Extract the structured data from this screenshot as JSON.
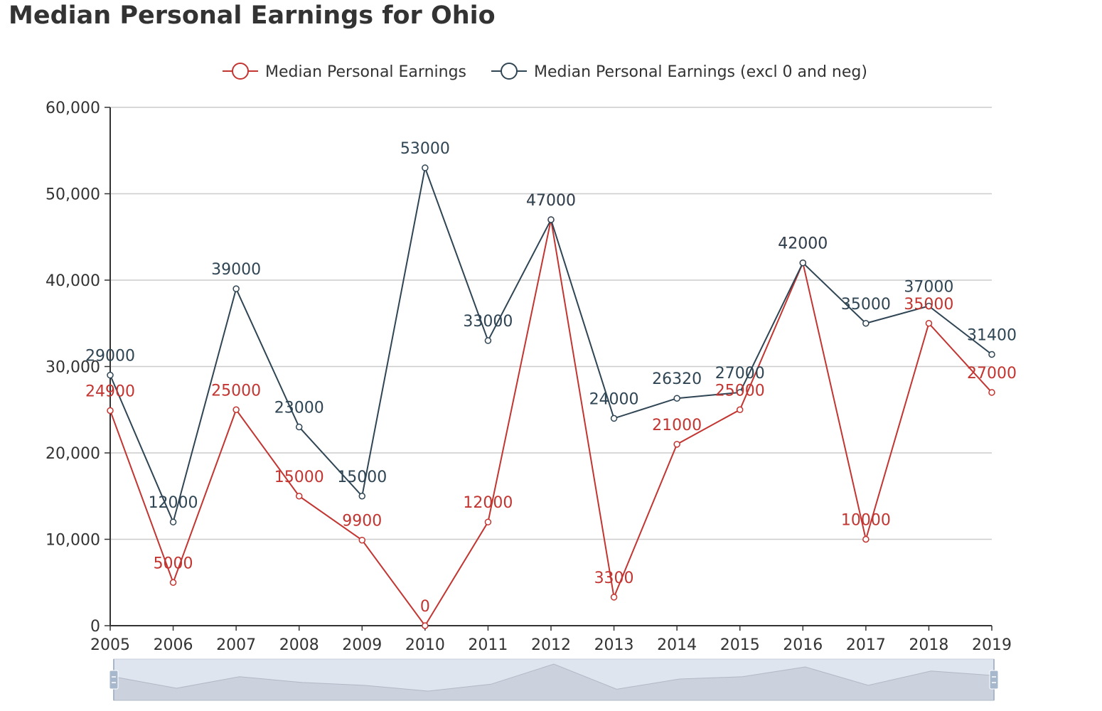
{
  "title": "Median Personal Earnings for Ohio",
  "chart_data": {
    "type": "line",
    "title": "Median Personal Earnings for Ohio",
    "xlabel": "",
    "ylabel": "",
    "categories": [
      "2005",
      "2006",
      "2007",
      "2008",
      "2009",
      "2010",
      "2011",
      "2012",
      "2013",
      "2014",
      "2015",
      "2016",
      "2017",
      "2018",
      "2019"
    ],
    "ylim": [
      0,
      60000
    ],
    "yticks": [
      0,
      10000,
      20000,
      30000,
      40000,
      50000,
      60000
    ],
    "ytick_labels": [
      "0",
      "10,000",
      "20,000",
      "30,000",
      "40,000",
      "50,000",
      "60,000"
    ],
    "grid": true,
    "legend_position": "top-center",
    "series": [
      {
        "name": "Median Personal Earnings",
        "color": "#c23531",
        "values": [
          24900,
          5000,
          25000,
          15000,
          9900,
          0,
          12000,
          47000,
          3300,
          21000,
          25000,
          42000,
          10000,
          35000,
          27000
        ]
      },
      {
        "name": "Median Personal Earnings (excl 0 and neg)",
        "color": "#2f4554",
        "values": [
          29000,
          12000,
          39000,
          23000,
          15000,
          53000,
          33000,
          47000,
          24000,
          26320,
          27000,
          42000,
          35000,
          37000,
          31400
        ]
      }
    ],
    "data_zoom": {
      "start": 0,
      "end": 100
    }
  }
}
